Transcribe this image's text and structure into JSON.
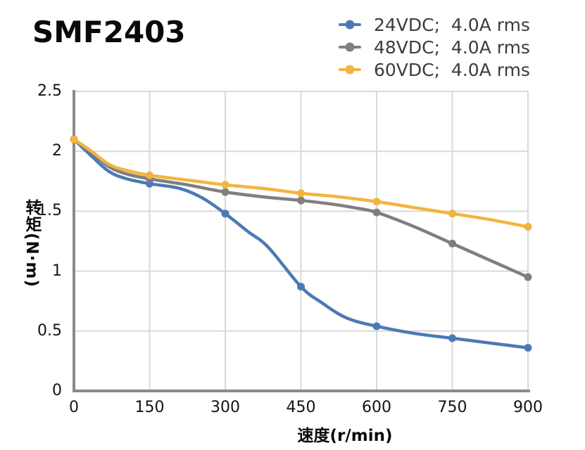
{
  "title": "SMF2403",
  "chart_data": {
    "type": "line",
    "title": "SMF2403",
    "xlabel": "速度(r/min)",
    "ylabel": "转矩(N·m)",
    "xlim": [
      0,
      900
    ],
    "ylim": [
      0,
      2.5
    ],
    "x_ticks": [
      0,
      150,
      300,
      450,
      600,
      750,
      900
    ],
    "y_ticks": [
      2.5,
      2,
      1.5,
      1,
      0.5,
      0
    ],
    "grid": true,
    "legend_position": "top-right",
    "marker_x": [
      0,
      150,
      300,
      450,
      600,
      750,
      900
    ],
    "series": [
      {
        "name": "24VDC;  4.0A rms",
        "color": "#4C79B6",
        "marker_values": [
          2.1,
          1.73,
          1.48,
          0.87,
          0.54,
          0.44,
          0.36
        ],
        "smooth_points": [
          [
            0,
            2.1
          ],
          [
            35,
            1.96
          ],
          [
            70,
            1.83
          ],
          [
            105,
            1.77
          ],
          [
            150,
            1.73
          ],
          [
            210,
            1.69
          ],
          [
            255,
            1.61
          ],
          [
            300,
            1.48
          ],
          [
            345,
            1.33
          ],
          [
            385,
            1.2
          ],
          [
            450,
            0.87
          ],
          [
            490,
            0.74
          ],
          [
            540,
            0.61
          ],
          [
            600,
            0.54
          ],
          [
            675,
            0.48
          ],
          [
            750,
            0.44
          ],
          [
            825,
            0.4
          ],
          [
            900,
            0.36
          ]
        ]
      },
      {
        "name": "48VDC;  4.0A rms",
        "color": "#7F7F7F",
        "marker_values": [
          2.1,
          1.77,
          1.66,
          1.59,
          1.49,
          1.23,
          0.95
        ],
        "smooth_points": [
          [
            0,
            2.1
          ],
          [
            35,
            1.99
          ],
          [
            70,
            1.87
          ],
          [
            105,
            1.81
          ],
          [
            150,
            1.77
          ],
          [
            225,
            1.72
          ],
          [
            300,
            1.66
          ],
          [
            375,
            1.62
          ],
          [
            450,
            1.59
          ],
          [
            510,
            1.56
          ],
          [
            555,
            1.53
          ],
          [
            600,
            1.49
          ],
          [
            675,
            1.37
          ],
          [
            750,
            1.23
          ],
          [
            825,
            1.09
          ],
          [
            900,
            0.95
          ]
        ]
      },
      {
        "name": "60VDC;  4.0A rms",
        "color": "#F3B43F",
        "marker_values": [
          2.1,
          1.8,
          1.72,
          1.65,
          1.58,
          1.48,
          1.37
        ],
        "smooth_points": [
          [
            0,
            2.1
          ],
          [
            35,
            2.0
          ],
          [
            70,
            1.89
          ],
          [
            105,
            1.84
          ],
          [
            150,
            1.8
          ],
          [
            225,
            1.76
          ],
          [
            300,
            1.72
          ],
          [
            375,
            1.69
          ],
          [
            450,
            1.65
          ],
          [
            525,
            1.62
          ],
          [
            600,
            1.58
          ],
          [
            675,
            1.53
          ],
          [
            750,
            1.48
          ],
          [
            825,
            1.43
          ],
          [
            900,
            1.37
          ]
        ]
      }
    ]
  },
  "style": {
    "grid_color": "#d9d9d9",
    "axis_color": "#8a8a8a",
    "tick_text_color": "#141414",
    "legend_text_color": "#3c3c3c",
    "title_color": "#0a0a0a",
    "background": "#ffffff"
  }
}
